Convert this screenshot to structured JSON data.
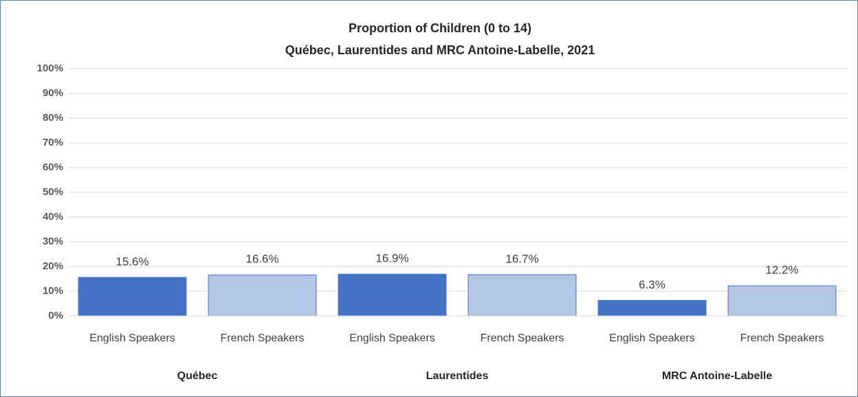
{
  "chart_data": {
    "type": "bar",
    "title": "Proportion of Children (0 to 14)",
    "subtitle": "Québec, Laurentides and MRC Antoine-Labelle, 2021",
    "categories": [
      "Québec",
      "Laurentides",
      "MRC Antoine-Labelle"
    ],
    "series": [
      {
        "name": "English Speakers",
        "color": "#4472c4",
        "values": [
          15.6,
          16.9,
          6.3
        ],
        "value_labels": [
          "15.6%",
          "16.9%",
          "6.3%"
        ]
      },
      {
        "name": "French Speakers",
        "color": "#b4c7e7",
        "values": [
          16.6,
          16.7,
          12.2
        ],
        "value_labels": [
          "16.6%",
          "16.7%",
          "12.2%"
        ]
      }
    ],
    "ylim": [
      0,
      100
    ],
    "yticks": [
      {
        "value": 0,
        "label": "0%"
      },
      {
        "value": 10,
        "label": "10%"
      },
      {
        "value": 20,
        "label": "20%"
      },
      {
        "value": 30,
        "label": "30%"
      },
      {
        "value": 40,
        "label": "40%"
      },
      {
        "value": 50,
        "label": "50%"
      },
      {
        "value": 60,
        "label": "60%"
      },
      {
        "value": 70,
        "label": "70%"
      },
      {
        "value": 80,
        "label": "80%"
      },
      {
        "value": 90,
        "label": "90%"
      },
      {
        "value": 100,
        "label": "100%"
      }
    ],
    "grid": true
  }
}
